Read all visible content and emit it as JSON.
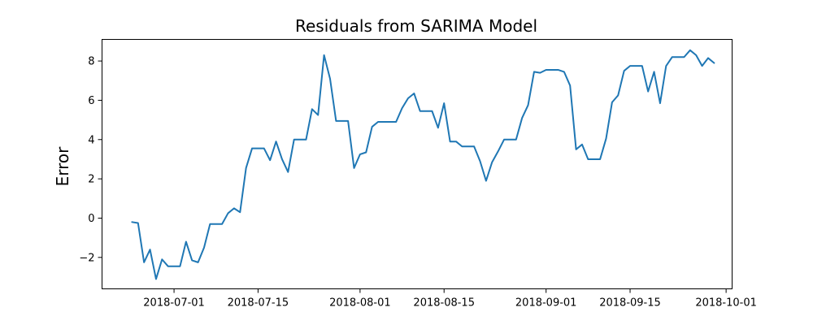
{
  "chart_data": {
    "type": "line",
    "title": "Residuals from SARIMA Model",
    "xlabel": "",
    "ylabel": "Error",
    "grid": false,
    "line_color": "#1f77b4",
    "xlim": [
      "2018-06-19",
      "2018-10-02"
    ],
    "ylim": [
      -3.6,
      9.1
    ],
    "x_ticks": [
      "2018-07-01",
      "2018-07-15",
      "2018-08-01",
      "2018-08-15",
      "2018-09-01",
      "2018-09-15",
      "2018-10-01"
    ],
    "y_ticks": [
      -2,
      0,
      2,
      4,
      6,
      8
    ],
    "y_tick_labels": [
      "−2",
      "0",
      "2",
      "4",
      "6",
      "8"
    ],
    "series": [
      {
        "x": [
          "2018-06-24",
          "2018-06-25",
          "2018-06-26",
          "2018-06-27",
          "2018-06-28",
          "2018-06-29",
          "2018-06-30",
          "2018-07-02",
          "2018-07-03",
          "2018-07-04",
          "2018-07-05",
          "2018-07-06",
          "2018-07-07",
          "2018-07-09",
          "2018-07-10",
          "2018-07-11",
          "2018-07-12",
          "2018-07-13",
          "2018-07-14",
          "2018-07-16",
          "2018-07-17",
          "2018-07-18",
          "2018-07-19",
          "2018-07-20",
          "2018-07-21",
          "2018-07-23",
          "2018-07-24",
          "2018-07-25",
          "2018-07-26",
          "2018-07-27",
          "2018-07-28",
          "2018-07-30",
          "2018-07-31",
          "2018-08-01",
          "2018-08-02",
          "2018-08-03",
          "2018-08-04",
          "2018-08-06",
          "2018-08-07",
          "2018-08-08",
          "2018-08-09",
          "2018-08-10",
          "2018-08-11",
          "2018-08-13",
          "2018-08-14",
          "2018-08-15",
          "2018-08-16",
          "2018-08-17",
          "2018-08-18",
          "2018-08-20",
          "2018-08-21",
          "2018-08-22",
          "2018-08-23",
          "2018-08-24",
          "2018-08-25",
          "2018-08-27",
          "2018-08-28",
          "2018-08-29",
          "2018-08-30",
          "2018-08-31",
          "2018-09-01",
          "2018-09-02",
          "2018-09-03",
          "2018-09-04",
          "2018-09-05",
          "2018-09-06",
          "2018-09-07",
          "2018-09-08",
          "2018-09-10",
          "2018-09-11",
          "2018-09-12",
          "2018-09-13",
          "2018-09-14",
          "2018-09-15",
          "2018-09-17",
          "2018-09-18",
          "2018-09-19",
          "2018-09-20",
          "2018-09-21",
          "2018-09-22",
          "2018-09-24",
          "2018-09-25",
          "2018-09-26",
          "2018-09-27",
          "2018-09-28",
          "2018-09-29"
        ],
        "y": [
          -0.2,
          -0.25,
          -2.25,
          -1.6,
          -3.1,
          -2.1,
          -2.45,
          -2.45,
          -1.2,
          -2.15,
          -2.25,
          -1.5,
          -0.3,
          -0.3,
          0.25,
          0.5,
          0.3,
          2.55,
          3.55,
          3.55,
          2.95,
          3.9,
          3.0,
          2.35,
          4.0,
          4.0,
          5.55,
          5.25,
          8.3,
          7.1,
          4.95,
          4.95,
          2.55,
          3.25,
          3.35,
          4.65,
          4.9,
          4.9,
          4.9,
          5.6,
          6.1,
          6.35,
          5.45,
          5.45,
          4.6,
          5.85,
          3.9,
          3.9,
          3.65,
          3.65,
          2.9,
          1.9,
          2.85,
          3.4,
          4.0,
          4.0,
          5.1,
          5.75,
          7.45,
          7.4,
          7.55,
          7.55,
          7.55,
          7.45,
          6.75,
          3.5,
          3.75,
          3.0,
          3.0,
          4.05,
          5.9,
          6.25,
          7.5,
          7.75,
          7.75,
          6.45,
          7.45,
          5.85,
          7.75,
          8.2,
          8.2,
          8.55,
          8.3,
          7.75,
          8.15,
          7.9
        ]
      }
    ]
  }
}
